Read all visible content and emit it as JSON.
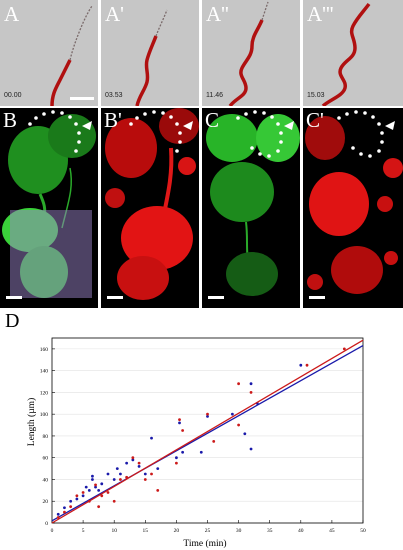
{
  "top_row": {
    "panels": [
      {
        "label": "A",
        "time": "00.00"
      },
      {
        "label": "A'",
        "time": "03.53"
      },
      {
        "label": "A''",
        "time": "11.46"
      },
      {
        "label": "A'''",
        "time": "15.03"
      }
    ]
  },
  "middle_row": {
    "panels": [
      {
        "label": "B",
        "channel": "green"
      },
      {
        "label": "B'",
        "channel": "red"
      },
      {
        "label": "C",
        "channel": "green"
      },
      {
        "label": "C'",
        "channel": "red"
      }
    ]
  },
  "colors": {
    "green": "#33cc33",
    "red": "#e01010",
    "track": "#b01010",
    "blue_series": "#1a1aaa",
    "red_series": "#cc1a1a"
  },
  "chart_panel_label": "D",
  "chart_data": {
    "type": "scatter",
    "xlabel": "Time (min)",
    "ylabel": "Length (µm)",
    "xlim": [
      0,
      50
    ],
    "ylim": [
      0,
      170
    ],
    "x_ticks": [
      0,
      5,
      10,
      15,
      20,
      25,
      30,
      35,
      40,
      45,
      50
    ],
    "y_ticks": [
      0,
      20,
      40,
      60,
      80,
      100,
      120,
      140,
      160
    ],
    "series": [
      {
        "color": "#1a1aaa",
        "points": [
          [
            1,
            8
          ],
          [
            2,
            14
          ],
          [
            3,
            20
          ],
          [
            4,
            22
          ],
          [
            5,
            25
          ],
          [
            5.5,
            33
          ],
          [
            6,
            30
          ],
          [
            6.5,
            40
          ],
          [
            6.5,
            43
          ],
          [
            7,
            33
          ],
          [
            7.5,
            30
          ],
          [
            8,
            36
          ],
          [
            9,
            45
          ],
          [
            10,
            40
          ],
          [
            10.5,
            50
          ],
          [
            11,
            45
          ],
          [
            12,
            55
          ],
          [
            13,
            58
          ],
          [
            14,
            52
          ],
          [
            15,
            45
          ],
          [
            16,
            78
          ],
          [
            17,
            50
          ],
          [
            20,
            60
          ],
          [
            20.5,
            92
          ],
          [
            21,
            65
          ],
          [
            24,
            65
          ],
          [
            25,
            98
          ],
          [
            29,
            100
          ],
          [
            31,
            82
          ],
          [
            32,
            68
          ],
          [
            32,
            128
          ],
          [
            33,
            110
          ],
          [
            40,
            145
          ]
        ],
        "fit": [
          [
            0,
            2
          ],
          [
            50,
            163
          ]
        ]
      },
      {
        "color": "#cc1a1a",
        "points": [
          [
            1,
            5
          ],
          [
            2,
            10
          ],
          [
            3,
            15
          ],
          [
            4,
            25
          ],
          [
            5,
            28
          ],
          [
            6,
            20
          ],
          [
            7,
            35
          ],
          [
            7.5,
            15
          ],
          [
            8,
            25
          ],
          [
            9,
            28
          ],
          [
            10,
            20
          ],
          [
            11,
            40
          ],
          [
            12,
            42
          ],
          [
            13,
            60
          ],
          [
            14,
            55
          ],
          [
            15,
            40
          ],
          [
            16,
            45
          ],
          [
            17,
            30
          ],
          [
            20,
            55
          ],
          [
            20.5,
            95
          ],
          [
            21,
            85
          ],
          [
            25,
            100
          ],
          [
            26,
            75
          ],
          [
            30,
            90
          ],
          [
            30,
            128
          ],
          [
            32,
            120
          ],
          [
            41,
            145
          ],
          [
            47,
            160
          ]
        ],
        "fit": [
          [
            0,
            0
          ],
          [
            50,
            168
          ]
        ]
      }
    ]
  }
}
